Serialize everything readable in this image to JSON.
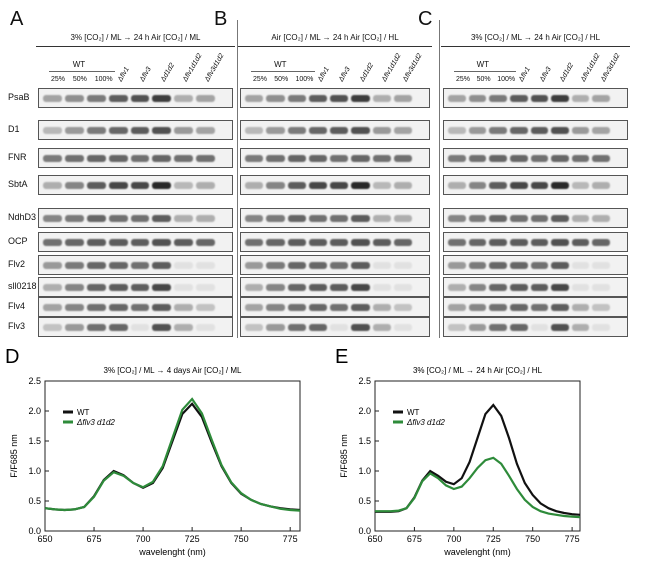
{
  "figure": {
    "panels": {
      "A": {
        "letter": "A",
        "condition": "3% [CO₂] / ML → 24 h Air [CO₂] / ML",
        "wt_label": "WT",
        "lanes": [
          "25%",
          "50%",
          "100%",
          "Δflv1",
          "Δflv3",
          "Δd1d2",
          "Δflv1d1d2",
          "Δflv3d1d2"
        ]
      },
      "B": {
        "letter": "B",
        "condition": "Air [CO₂] / ML → 24 h Air [CO₂] / HL",
        "wt_label": "WT",
        "lanes": [
          "25%",
          "50%",
          "100%",
          "Δflv1",
          "Δflv3",
          "Δd1d2",
          "Δflv1d1d2",
          "Δflv3d1d2"
        ]
      },
      "C": {
        "letter": "C",
        "condition": "3% [CO₂] / ML → 24 h Air [CO₂] / HL",
        "wt_label": "WT",
        "lanes": [
          "25%",
          "50%",
          "100%",
          "Δflv1",
          "Δflv3",
          "Δd1d2",
          "Δflv1d1d2",
          "Δflv3d1d2"
        ]
      }
    },
    "blot_rows": [
      "PsaB",
      "D1",
      "FNR",
      "SbtA",
      "NdhD3",
      "OCP",
      "Flv2",
      "sll0218",
      "Flv4",
      "Flv3"
    ]
  },
  "chart_data": [
    {
      "type": "line",
      "panel": "D",
      "title": "3% [CO₂] / ML → 4 days Air [CO₂] / ML",
      "xlabel": "wavelenght (nm)",
      "ylabel": "F/F685 nm",
      "xlim": [
        650,
        780
      ],
      "ylim": [
        0.0,
        2.5
      ],
      "xticks": [
        650,
        675,
        700,
        725,
        750,
        775
      ],
      "yticks": [
        "0.0",
        "0.5",
        "1.0",
        "1.5",
        "2.0",
        "2.5"
      ],
      "legend_placement": "top-left",
      "series": [
        {
          "name": "WT",
          "color": "#111111",
          "x": [
            650,
            655,
            660,
            665,
            670,
            675,
            680,
            685,
            690,
            695,
            700,
            705,
            710,
            715,
            720,
            725,
            730,
            735,
            740,
            745,
            750,
            755,
            760,
            765,
            770,
            775,
            780
          ],
          "y": [
            0.38,
            0.36,
            0.35,
            0.36,
            0.4,
            0.58,
            0.85,
            1.0,
            0.93,
            0.8,
            0.72,
            0.8,
            1.05,
            1.5,
            1.95,
            2.12,
            1.9,
            1.48,
            1.08,
            0.8,
            0.62,
            0.52,
            0.45,
            0.41,
            0.38,
            0.36,
            0.35
          ]
        },
        {
          "name": "Δflv3 d1d2",
          "color": "#2e8b3a",
          "x": [
            650,
            655,
            660,
            665,
            670,
            675,
            680,
            685,
            690,
            695,
            700,
            705,
            710,
            715,
            720,
            725,
            730,
            735,
            740,
            745,
            750,
            755,
            760,
            765,
            770,
            775,
            780
          ],
          "y": [
            0.38,
            0.36,
            0.35,
            0.36,
            0.4,
            0.57,
            0.84,
            0.98,
            0.92,
            0.8,
            0.73,
            0.82,
            1.08,
            1.55,
            2.02,
            2.2,
            1.96,
            1.52,
            1.1,
            0.81,
            0.63,
            0.52,
            0.45,
            0.41,
            0.37,
            0.35,
            0.34
          ]
        }
      ]
    },
    {
      "type": "line",
      "panel": "E",
      "title": "3% [CO₂] / ML → 24 h Air [CO₂] / HL",
      "xlabel": "wavelenght (nm)",
      "ylabel": "F/F685 nm",
      "xlim": [
        650,
        780
      ],
      "ylim": [
        0.0,
        2.5
      ],
      "xticks": [
        650,
        675,
        700,
        725,
        750,
        775
      ],
      "yticks": [
        "0.0",
        "0.5",
        "1.0",
        "1.5",
        "2.0",
        "2.5"
      ],
      "legend_placement": "top-left",
      "series": [
        {
          "name": "WT",
          "color": "#111111",
          "x": [
            650,
            655,
            660,
            665,
            670,
            675,
            680,
            685,
            690,
            695,
            700,
            705,
            710,
            715,
            720,
            725,
            730,
            735,
            740,
            745,
            750,
            755,
            760,
            765,
            770,
            775,
            780
          ],
          "y": [
            0.32,
            0.32,
            0.32,
            0.33,
            0.38,
            0.56,
            0.84,
            1.0,
            0.92,
            0.82,
            0.78,
            0.88,
            1.15,
            1.55,
            1.95,
            2.1,
            1.92,
            1.55,
            1.12,
            0.8,
            0.6,
            0.46,
            0.38,
            0.33,
            0.3,
            0.28,
            0.27
          ]
        },
        {
          "name": "Δflv3 d1d2",
          "color": "#2e8b3a",
          "x": [
            650,
            655,
            660,
            665,
            670,
            675,
            680,
            685,
            690,
            695,
            700,
            705,
            710,
            715,
            720,
            725,
            730,
            735,
            740,
            745,
            750,
            755,
            760,
            765,
            770,
            775,
            780
          ],
          "y": [
            0.33,
            0.33,
            0.33,
            0.34,
            0.38,
            0.55,
            0.83,
            0.96,
            0.88,
            0.76,
            0.7,
            0.74,
            0.88,
            1.05,
            1.18,
            1.22,
            1.12,
            0.92,
            0.7,
            0.52,
            0.4,
            0.33,
            0.29,
            0.27,
            0.25,
            0.24,
            0.23
          ]
        }
      ]
    }
  ]
}
